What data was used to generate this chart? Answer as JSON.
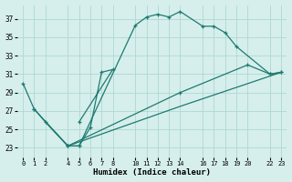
{
  "xlabel": "Humidex (Indice chaleur)",
  "xlim": [
    -0.5,
    23.5
  ],
  "ylim": [
    22.0,
    38.5
  ],
  "xticks": [
    0,
    1,
    2,
    4,
    5,
    6,
    7,
    8,
    10,
    11,
    12,
    13,
    14,
    16,
    17,
    18,
    19,
    20,
    22,
    23
  ],
  "yticks": [
    23,
    25,
    27,
    29,
    31,
    33,
    35,
    37
  ],
  "bg_color": "#d6efec",
  "grid_color": "#afd8d2",
  "line_color": "#1e7a70",
  "line1_x": [
    0,
    1,
    2,
    4,
    5,
    10,
    11,
    12,
    13,
    14,
    16,
    17,
    18,
    19,
    22,
    23
  ],
  "line1_y": [
    30.0,
    27.2,
    25.8,
    23.2,
    23.2,
    36.3,
    37.2,
    37.5,
    37.2,
    37.8,
    36.2,
    36.2,
    35.5,
    34.0,
    31.0,
    31.2
  ],
  "line2_x": [
    4,
    5,
    6,
    7,
    8,
    5
  ],
  "line2_y": [
    23.2,
    23.2,
    25.2,
    31.2,
    31.5,
    25.8
  ],
  "line3_x": [
    1,
    4,
    14,
    20,
    22,
    23
  ],
  "line3_y": [
    27.2,
    23.2,
    29.0,
    32.0,
    31.0,
    31.2
  ],
  "line4_x": [
    2,
    4,
    14,
    23
  ],
  "line4_y": [
    25.8,
    23.2,
    27.5,
    31.2
  ]
}
